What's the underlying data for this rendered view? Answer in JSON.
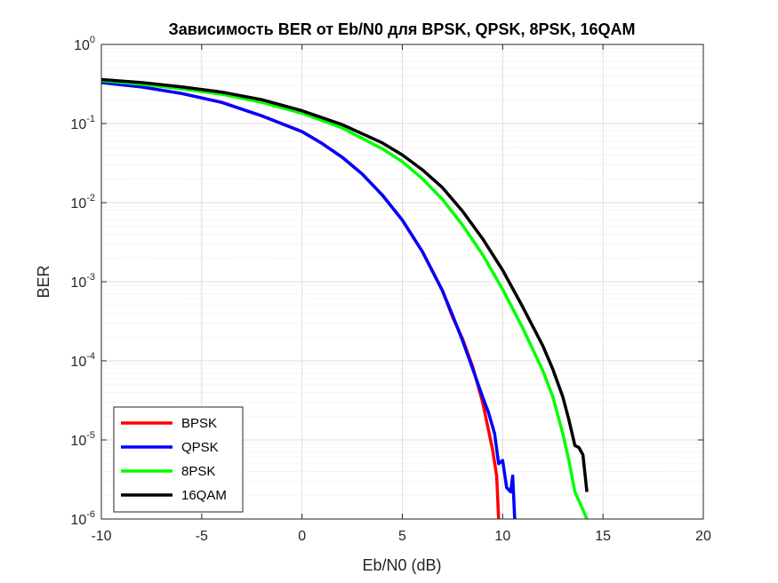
{
  "chart_data": {
    "type": "line",
    "title": "Зависимость BER от Eb/N0 для BPSK, QPSK, 8PSK, 16QAM",
    "xlabel": "Eb/N0 (dB)",
    "ylabel": "BER",
    "xlim": [
      -10,
      20
    ],
    "ylim": [
      1e-06,
      1
    ],
    "yscale": "log",
    "grid": true,
    "minor_grid": true,
    "legend_position": "bottom-left",
    "xticks": [
      -10,
      -5,
      0,
      5,
      10,
      15,
      20
    ],
    "xtick_labels": [
      "-10",
      "-5",
      "0",
      "5",
      "10",
      "15",
      "20"
    ],
    "yticks": [
      {
        "value": 1,
        "base": "10",
        "exp": "0"
      },
      {
        "value": 0.1,
        "base": "10",
        "exp": "-1"
      },
      {
        "value": 0.01,
        "base": "10",
        "exp": "-2"
      },
      {
        "value": 0.001,
        "base": "10",
        "exp": "-3"
      },
      {
        "value": 0.0001,
        "base": "10",
        "exp": "-4"
      },
      {
        "value": 1e-05,
        "base": "10",
        "exp": "-5"
      },
      {
        "value": 1e-06,
        "base": "10",
        "exp": "-6"
      }
    ],
    "series": [
      {
        "name": "BPSK",
        "color": "#ff0000",
        "x": [
          -10,
          -8,
          -6,
          -4,
          -2,
          0,
          1,
          2,
          3,
          4,
          5,
          6,
          7,
          7.5,
          8,
          8.5,
          9,
          9.5,
          9.7,
          9.8
        ],
        "y": [
          0.33,
          0.29,
          0.24,
          0.185,
          0.125,
          0.079,
          0.056,
          0.0375,
          0.023,
          0.0125,
          0.006,
          0.0024,
          0.00077,
          0.00036,
          0.00019,
          8.5e-05,
          3e-05,
          7.5e-06,
          3.5e-06,
          1e-06
        ]
      },
      {
        "name": "QPSK",
        "color": "#0000ff",
        "x": [
          -10,
          -8,
          -6,
          -4,
          -2,
          0,
          1,
          2,
          3,
          4,
          5,
          6,
          7,
          7.5,
          8,
          8.5,
          9,
          9.3,
          9.6,
          9.8,
          10,
          10.2,
          10.4,
          10.5,
          10.6
        ],
        "y": [
          0.33,
          0.29,
          0.24,
          0.185,
          0.125,
          0.079,
          0.056,
          0.0375,
          0.023,
          0.0125,
          0.006,
          0.0024,
          0.00077,
          0.00038,
          0.00018,
          8e-05,
          3.5e-05,
          2.2e-05,
          1.2e-05,
          5e-06,
          5.5e-06,
          2.5e-06,
          2.2e-06,
          3.5e-06,
          1e-06
        ]
      },
      {
        "name": "8PSK",
        "color": "#00ff00",
        "x": [
          -10,
          -8,
          -6,
          -4,
          -2,
          0,
          2,
          4,
          5,
          6,
          7,
          8,
          9,
          10,
          11,
          12,
          12.5,
          13,
          13.3,
          13.6,
          13.9,
          14.2
        ],
        "y": [
          0.35,
          0.315,
          0.275,
          0.235,
          0.185,
          0.135,
          0.088,
          0.048,
          0.033,
          0.02,
          0.011,
          0.0052,
          0.0022,
          0.0008,
          0.00026,
          7.5e-05,
          3.5e-05,
          1.2e-05,
          5.5e-06,
          2.2e-06,
          1.5e-06,
          1e-06
        ]
      },
      {
        "name": "16QAM",
        "color": "#000000",
        "x": [
          -10,
          -8,
          -6,
          -4,
          -2,
          0,
          2,
          4,
          5,
          6,
          7,
          8,
          9,
          10,
          11,
          12,
          12.5,
          13,
          13.3,
          13.6,
          13.8,
          14.0,
          14.2
        ],
        "y": [
          0.36,
          0.33,
          0.29,
          0.25,
          0.2,
          0.145,
          0.097,
          0.057,
          0.04,
          0.026,
          0.0155,
          0.0078,
          0.0035,
          0.0014,
          0.00048,
          0.000155,
          7.8e-05,
          3.5e-05,
          1.8e-05,
          8.5e-06,
          8e-06,
          6.5e-06,
          2.2e-06
        ]
      }
    ]
  }
}
